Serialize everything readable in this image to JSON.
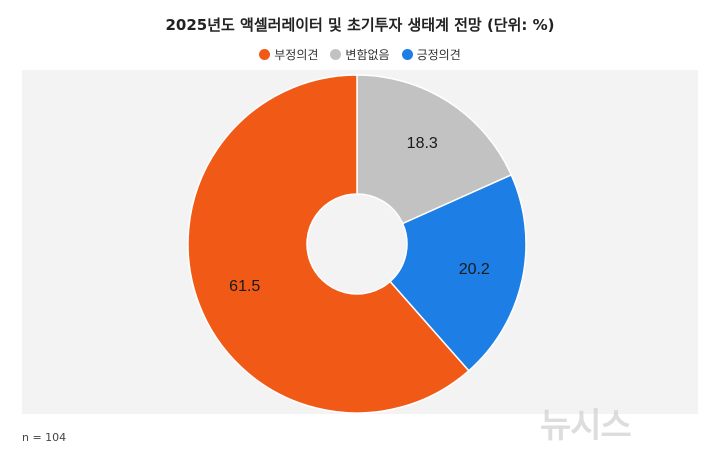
{
  "chart_data": {
    "type": "pie",
    "title": "2025년도 액셀러레이터 및 초기투자 생태계 전망 (단위: %)",
    "categories": [
      "부정의견",
      "변함없음",
      "긍정의견"
    ],
    "values": [
      61.5,
      18.3,
      20.2
    ],
    "data_labels": [
      "61.5",
      "18.3",
      "20.2"
    ],
    "colors": [
      "#f05a16",
      "#c2c2c2",
      "#1d7fe5"
    ],
    "legend_position": "top",
    "donut": true
  },
  "footnote": "n = 104",
  "watermark": "뉴시스"
}
